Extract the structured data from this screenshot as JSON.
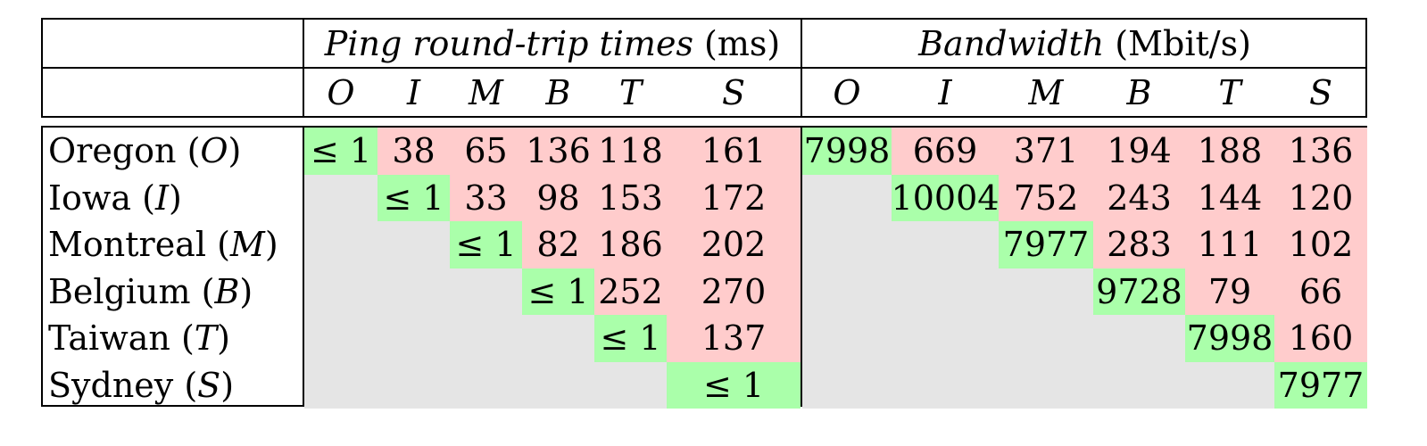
{
  "header": {
    "ping_title_italic": "Ping round-trip times",
    "ping_title_unit": "(ms)",
    "bw_title_italic": "Bandwidth",
    "bw_title_unit": "(Mbit/s)",
    "ping_columns": [
      "O",
      "I",
      "M",
      "B",
      "T",
      "S"
    ],
    "bw_columns": [
      "O",
      "I",
      "M",
      "B",
      "T",
      "S"
    ]
  },
  "rows": [
    {
      "name": "Oregon",
      "abbr": "O",
      "ping": [
        "≤ 1",
        "38",
        "65",
        "136",
        "118",
        "161"
      ],
      "bw": [
        "7998",
        "669",
        "371",
        "194",
        "188",
        "136"
      ]
    },
    {
      "name": "Iowa",
      "abbr": "I",
      "ping": [
        "",
        "≤ 1",
        "33",
        "98",
        "153",
        "172"
      ],
      "bw": [
        "",
        "10004",
        "752",
        "243",
        "144",
        "120"
      ]
    },
    {
      "name": "Montreal",
      "abbr": "M",
      "ping": [
        "",
        "",
        "≤ 1",
        "82",
        "186",
        "202"
      ],
      "bw": [
        "",
        "",
        "7977",
        "283",
        "111",
        "102"
      ]
    },
    {
      "name": "Belgium",
      "abbr": "B",
      "ping": [
        "",
        "",
        "",
        "≤ 1",
        "252",
        "270"
      ],
      "bw": [
        "",
        "",
        "",
        "9728",
        "79",
        "66"
      ]
    },
    {
      "name": "Taiwan",
      "abbr": "T",
      "ping": [
        "",
        "",
        "",
        "",
        "≤ 1",
        "137"
      ],
      "bw": [
        "",
        "",
        "",
        "",
        "7998",
        "160"
      ]
    },
    {
      "name": "Sydney",
      "abbr": "S",
      "ping": [
        "",
        "",
        "",
        "",
        "",
        "≤ 1"
      ],
      "bw": [
        "",
        "",
        "",
        "",
        "",
        "7977"
      ]
    }
  ],
  "colors": {
    "diagonal": "#aaffaa",
    "upper": "#ffcccc",
    "lower": "#e5e5e5"
  }
}
